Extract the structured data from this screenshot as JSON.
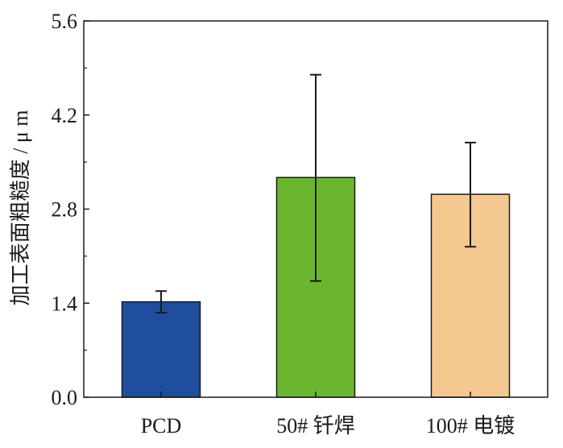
{
  "chart_data": {
    "type": "bar",
    "title": "",
    "xlabel": "",
    "ylabel": "加工表面粗糙度 / μ m",
    "ylim": [
      0,
      5.6
    ],
    "yticks": [
      0.0,
      1.4,
      2.8,
      4.2,
      5.6
    ],
    "ytick_labels": [
      "0.0",
      "1.4",
      "2.8",
      "4.2",
      "5.6"
    ],
    "categories": [
      "PCD",
      "50# 钎焊",
      "100# 电镀"
    ],
    "values": [
      1.42,
      3.27,
      3.02
    ],
    "error_low": [
      1.26,
      1.73,
      2.24
    ],
    "error_high": [
      1.58,
      4.8,
      3.79
    ],
    "colors": [
      "#1f4e9e",
      "#6ab72f",
      "#f5c891"
    ],
    "grid": false,
    "legend": "none"
  }
}
